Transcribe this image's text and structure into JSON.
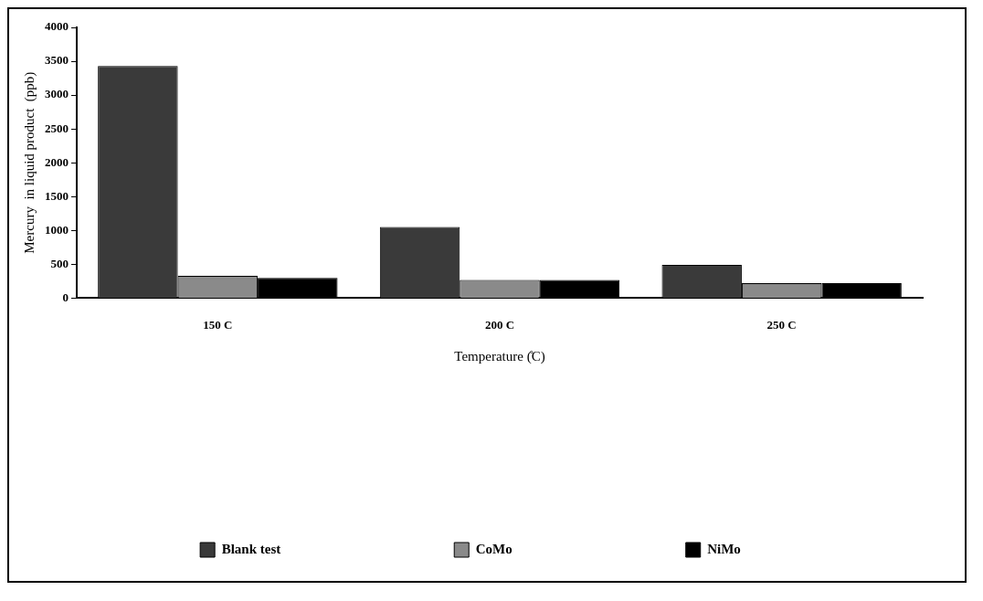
{
  "chart_data": {
    "type": "bar",
    "xlabel": "Temperature (̊C)",
    "ylabel": "Mercury  in liquid product  (ppb)",
    "categories": [
      "150 C",
      "200 C",
      "250 C"
    ],
    "series": [
      {
        "name": "Blank test",
        "color": "#3a3a3a",
        "values": [
          3430,
          1050,
          490
        ]
      },
      {
        "name": "CoMo",
        "color": "#8a8a8a",
        "values": [
          330,
          270,
          220
        ]
      },
      {
        "name": "NiMo",
        "color": "#000000",
        "values": [
          300,
          270,
          220
        ]
      }
    ],
    "ylim": [
      0,
      4000
    ],
    "yticks": [
      0,
      500,
      1000,
      1500,
      2000,
      2500,
      3000,
      3500,
      4000
    ],
    "grid": false,
    "legend": "bottom"
  }
}
